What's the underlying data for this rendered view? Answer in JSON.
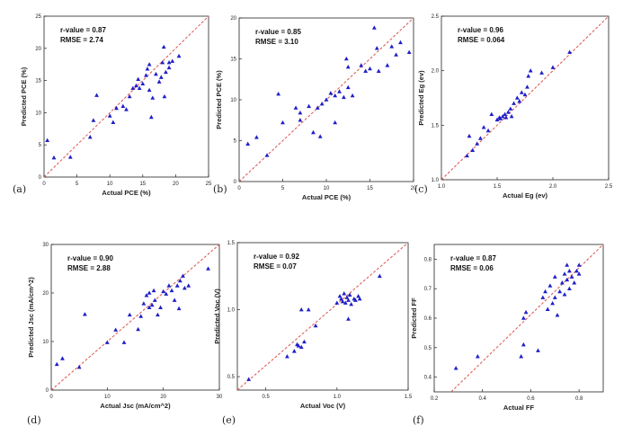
{
  "chart_data": [
    {
      "type": "scatter",
      "panel_label": "(a)",
      "xlabel": "Actual PCE (%)",
      "ylabel": "Predicted PCE (%)",
      "xlim": [
        0,
        25
      ],
      "ylim": [
        0,
        25
      ],
      "xticks": [
        "0",
        "5",
        "10",
        "15",
        "20",
        "25"
      ],
      "yticks": [
        "0",
        "5",
        "10",
        "15",
        "20",
        "25"
      ],
      "xtick_values": [
        0,
        5,
        10,
        15,
        20,
        25
      ],
      "ytick_values": [
        0,
        5,
        10,
        15,
        20,
        25
      ],
      "annotation": [
        "r-value = 0.87",
        "RMSE =  2.74"
      ],
      "fit_line": [
        [
          0,
          0
        ],
        [
          25,
          25
        ]
      ],
      "marker_color": "#1f1fc8",
      "line_color": "#d9534f",
      "points": [
        [
          0.5,
          5.7
        ],
        [
          1.5,
          3.0
        ],
        [
          4,
          3.1
        ],
        [
          7,
          6.2
        ],
        [
          7.5,
          8.8
        ],
        [
          8,
          12.7
        ],
        [
          10,
          9.5
        ],
        [
          10.5,
          8.5
        ],
        [
          11,
          10.7
        ],
        [
          12,
          11.0
        ],
        [
          12.5,
          10.5
        ],
        [
          13,
          12.5
        ],
        [
          13.5,
          13.8
        ],
        [
          14,
          14.2
        ],
        [
          14.3,
          15.2
        ],
        [
          14.5,
          13.8
        ],
        [
          15,
          14.5
        ],
        [
          15.5,
          15.8
        ],
        [
          15.7,
          16.8
        ],
        [
          16,
          17.5
        ],
        [
          16,
          13.5
        ],
        [
          16.3,
          9.3
        ],
        [
          16.5,
          12.3
        ],
        [
          17,
          16.0
        ],
        [
          17.5,
          14.8
        ],
        [
          17.8,
          15.5
        ],
        [
          18,
          17.8
        ],
        [
          18.2,
          20.2
        ],
        [
          18.3,
          12.5
        ],
        [
          18.5,
          16.3
        ],
        [
          19,
          17.0
        ],
        [
          19,
          17.8
        ],
        [
          19.5,
          18.0
        ],
        [
          20.5,
          18.8
        ]
      ]
    },
    {
      "type": "scatter",
      "panel_label": "(b)",
      "xlabel": "Actual PCE (%)",
      "ylabel": "Predicted PCE (%)",
      "xlim": [
        0,
        20
      ],
      "ylim": [
        0,
        20
      ],
      "xticks": [
        "0",
        "5",
        "10",
        "15",
        "20"
      ],
      "yticks": [
        "0",
        "5",
        "10",
        "15",
        "20"
      ],
      "xtick_values": [
        0,
        5,
        10,
        15,
        20
      ],
      "ytick_values": [
        0,
        5,
        10,
        15,
        20
      ],
      "annotation": [
        "r-value = 0.85",
        "RMSE = 3.10"
      ],
      "fit_line": [
        [
          0,
          0
        ],
        [
          20,
          20
        ]
      ],
      "marker_color": "#1f1fc8",
      "line_color": "#d9534f",
      "points": [
        [
          1,
          4.6
        ],
        [
          2,
          5.4
        ],
        [
          3.2,
          3.2
        ],
        [
          4.5,
          10.7
        ],
        [
          5,
          7.2
        ],
        [
          6.5,
          9.0
        ],
        [
          7,
          8.4
        ],
        [
          7,
          7.5
        ],
        [
          8,
          9.2
        ],
        [
          8.5,
          6.0
        ],
        [
          9,
          9.0
        ],
        [
          9.3,
          5.5
        ],
        [
          9.5,
          9.5
        ],
        [
          10,
          10.0
        ],
        [
          10.5,
          10.8
        ],
        [
          11,
          7.2
        ],
        [
          11,
          10.5
        ],
        [
          11.5,
          11.0
        ],
        [
          12,
          10.3
        ],
        [
          12.3,
          15.0
        ],
        [
          12.5,
          14.0
        ],
        [
          12.5,
          11.5
        ],
        [
          13,
          10.5
        ],
        [
          14,
          14.2
        ],
        [
          14.5,
          13.5
        ],
        [
          15,
          13.8
        ],
        [
          15.5,
          18.8
        ],
        [
          15.8,
          16.3
        ],
        [
          16,
          13.5
        ],
        [
          17,
          14.2
        ],
        [
          17.5,
          16.5
        ],
        [
          18,
          15.5
        ],
        [
          18.5,
          17.0
        ],
        [
          19.5,
          15.8
        ]
      ]
    },
    {
      "type": "scatter",
      "panel_label": "(c)",
      "xlabel": "Actual Eg (ev)",
      "ylabel": "Predicted Eg (ev)",
      "xlim": [
        1.0,
        2.5
      ],
      "ylim": [
        1.0,
        2.5
      ],
      "xticks": [
        "1.0",
        "1.5",
        "2.0",
        "2.5"
      ],
      "yticks": [
        "1.0",
        "1.5",
        "2.0",
        "2.5"
      ],
      "xtick_values": [
        1.0,
        1.5,
        2.0,
        2.5
      ],
      "ytick_values": [
        1.0,
        1.5,
        2.0,
        2.5
      ],
      "annotation": [
        "r-value = 0.96",
        "RMSE =  0.064"
      ],
      "fit_line": [
        [
          1.0,
          1.0
        ],
        [
          2.5,
          2.5
        ]
      ],
      "marker_color": "#1f1fc8",
      "line_color": "#d9534f",
      "points": [
        [
          1.23,
          1.22
        ],
        [
          1.25,
          1.4
        ],
        [
          1.28,
          1.27
        ],
        [
          1.32,
          1.33
        ],
        [
          1.35,
          1.38
        ],
        [
          1.38,
          1.48
        ],
        [
          1.42,
          1.45
        ],
        [
          1.45,
          1.6
        ],
        [
          1.5,
          1.55
        ],
        [
          1.52,
          1.57
        ],
        [
          1.53,
          1.56
        ],
        [
          1.55,
          1.58
        ],
        [
          1.57,
          1.6
        ],
        [
          1.58,
          1.57
        ],
        [
          1.6,
          1.62
        ],
        [
          1.62,
          1.65
        ],
        [
          1.63,
          1.58
        ],
        [
          1.65,
          1.7
        ],
        [
          1.68,
          1.75
        ],
        [
          1.7,
          1.72
        ],
        [
          1.72,
          1.8
        ],
        [
          1.75,
          1.78
        ],
        [
          1.77,
          1.85
        ],
        [
          1.78,
          1.95
        ],
        [
          1.8,
          2.0
        ],
        [
          1.9,
          1.98
        ],
        [
          2.0,
          2.03
        ],
        [
          2.15,
          2.17
        ]
      ]
    },
    {
      "type": "scatter",
      "panel_label": "(d)",
      "xlabel": "Actual Jsc (mA/cm^2)",
      "ylabel": "Predicted Jsc (mA/cm^2)",
      "xlim": [
        0,
        30
      ],
      "ylim": [
        0,
        30
      ],
      "xticks": [
        "0",
        "10",
        "20",
        "30"
      ],
      "yticks": [
        "0",
        "10",
        "20",
        "30"
      ],
      "xtick_values": [
        0,
        10,
        20,
        30
      ],
      "ytick_values": [
        0,
        10,
        20,
        30
      ],
      "annotation": [
        "r-value = 0.90",
        "RMSE = 2.88"
      ],
      "fit_line": [
        [
          0,
          0
        ],
        [
          30,
          30
        ]
      ],
      "marker_color": "#1f1fc8",
      "line_color": "#d9534f",
      "points": [
        [
          1,
          5.3
        ],
        [
          2,
          6.5
        ],
        [
          5,
          4.7
        ],
        [
          6,
          15.6
        ],
        [
          10,
          9.8
        ],
        [
          11.5,
          12.4
        ],
        [
          13,
          9.8
        ],
        [
          14,
          15.5
        ],
        [
          15.5,
          12.5
        ],
        [
          16,
          15.2
        ],
        [
          16.5,
          17.8
        ],
        [
          17,
          19.5
        ],
        [
          17.5,
          17.0
        ],
        [
          17.5,
          20.0
        ],
        [
          18,
          17.5
        ],
        [
          18.3,
          20.5
        ],
        [
          18.5,
          18.5
        ],
        [
          19,
          15.5
        ],
        [
          19.5,
          17.0
        ],
        [
          20,
          20.3
        ],
        [
          20.5,
          19.8
        ],
        [
          21,
          21.5
        ],
        [
          21.5,
          20.5
        ],
        [
          22,
          18.5
        ],
        [
          22.5,
          21.5
        ],
        [
          22.8,
          16.8
        ],
        [
          23,
          22.5
        ],
        [
          23.5,
          23.5
        ],
        [
          23.8,
          21.0
        ],
        [
          24.5,
          21.5
        ],
        [
          28,
          25.0
        ]
      ]
    },
    {
      "type": "scatter",
      "panel_label": "(e)",
      "xlabel": "Actual Voc (V)",
      "ylabel": "Predicted Voc (V)",
      "xlim": [
        0.3,
        1.5
      ],
      "ylim": [
        0.4,
        1.5
      ],
      "xticks": [
        "0.5",
        "1.0",
        "1.5"
      ],
      "yticks": [
        "0.5",
        "1.0",
        "1.5"
      ],
      "xtick_values": [
        0.5,
        1.0,
        1.5
      ],
      "ytick_values": [
        0.5,
        1.0,
        1.5
      ],
      "annotation": [
        "r-value = 0.92",
        "RMSE = 0.07"
      ],
      "fit_line": [
        [
          0.3,
          0.4
        ],
        [
          1.5,
          1.5
        ]
      ],
      "marker_color": "#1f1fc8",
      "line_color": "#d9534f",
      "points": [
        [
          0.38,
          0.48
        ],
        [
          0.65,
          0.65
        ],
        [
          0.7,
          0.69
        ],
        [
          0.72,
          0.74
        ],
        [
          0.73,
          0.73
        ],
        [
          0.75,
          0.72
        ],
        [
          0.77,
          0.76
        ],
        [
          0.8,
          1.0
        ],
        [
          0.75,
          1.0
        ],
        [
          0.85,
          0.88
        ],
        [
          1.0,
          1.05
        ],
        [
          1.02,
          1.1
        ],
        [
          1.03,
          1.08
        ],
        [
          1.04,
          1.06
        ],
        [
          1.05,
          1.12
        ],
        [
          1.06,
          1.05
        ],
        [
          1.07,
          1.09
        ],
        [
          1.08,
          1.07
        ],
        [
          1.08,
          0.93
        ],
        [
          1.09,
          1.11
        ],
        [
          1.1,
          1.04
        ],
        [
          1.12,
          1.08
        ],
        [
          1.13,
          1.07
        ],
        [
          1.15,
          1.1
        ],
        [
          1.16,
          1.08
        ],
        [
          1.3,
          1.25
        ]
      ]
    },
    {
      "type": "scatter",
      "panel_label": "(f)",
      "xlabel": "Actual FF",
      "ylabel": "Predicted FF",
      "xlim": [
        0.2,
        0.9
      ],
      "ylim": [
        0.35,
        0.85
      ],
      "xticks": [
        "0.2",
        "0.4",
        "0.6",
        "0.8"
      ],
      "yticks": [
        "0.4",
        "0.5",
        "0.6",
        "0.7",
        "0.8"
      ],
      "xtick_values": [
        0.2,
        0.4,
        0.6,
        0.8
      ],
      "ytick_values": [
        0.4,
        0.5,
        0.6,
        0.7,
        0.8
      ],
      "annotation": [
        "r-value = 0.87",
        "RMSE = 0.06"
      ],
      "fit_line": [
        [
          0.27,
          0.35
        ],
        [
          0.9,
          0.85
        ]
      ],
      "marker_color": "#1f1fc8",
      "line_color": "#d9534f",
      "points": [
        [
          0.29,
          0.43
        ],
        [
          0.38,
          0.47
        ],
        [
          0.56,
          0.47
        ],
        [
          0.57,
          0.51
        ],
        [
          0.57,
          0.6
        ],
        [
          0.58,
          0.62
        ],
        [
          0.63,
          0.49
        ],
        [
          0.65,
          0.67
        ],
        [
          0.66,
          0.69
        ],
        [
          0.67,
          0.63
        ],
        [
          0.68,
          0.71
        ],
        [
          0.69,
          0.65
        ],
        [
          0.7,
          0.67
        ],
        [
          0.71,
          0.61
        ],
        [
          0.72,
          0.69
        ],
        [
          0.73,
          0.72
        ],
        [
          0.74,
          0.75
        ],
        [
          0.74,
          0.68
        ],
        [
          0.75,
          0.73
        ],
        [
          0.75,
          0.78
        ],
        [
          0.76,
          0.7
        ],
        [
          0.76,
          0.76
        ],
        [
          0.77,
          0.74
        ],
        [
          0.78,
          0.72
        ],
        [
          0.79,
          0.76
        ],
        [
          0.8,
          0.78
        ],
        [
          0.8,
          0.75
        ],
        [
          0.7,
          0.74
        ]
      ]
    }
  ]
}
